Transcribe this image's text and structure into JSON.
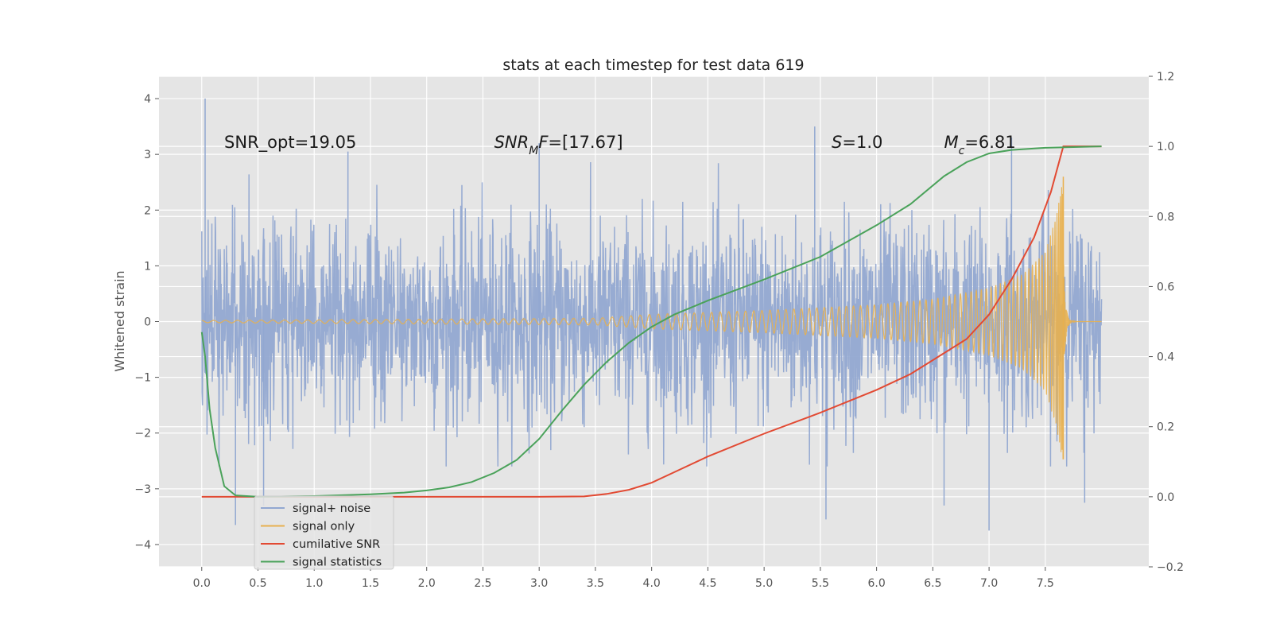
{
  "chart_data": {
    "type": "line",
    "title": "stats at each timestep for test data 619",
    "xlabel": "",
    "ylabel": "Whitened strain",
    "xlim": [
      -0.38,
      8.42
    ],
    "ylim": [
      -4.4,
      4.4
    ],
    "y2lim": [
      -0.2,
      1.2
    ],
    "x_ticks": [
      0.0,
      0.5,
      1.0,
      1.5,
      2.0,
      2.5,
      3.0,
      3.5,
      4.0,
      4.5,
      5.0,
      5.5,
      6.0,
      6.5,
      7.0,
      7.5
    ],
    "x_tick_labels": [
      "0.0",
      "0.5",
      "1.0",
      "1.5",
      "2.0",
      "2.5",
      "3.0",
      "3.5",
      "4.0",
      "4.5",
      "5.0",
      "5.5",
      "6.0",
      "6.5",
      "7.0",
      "7.5"
    ],
    "y_ticks": [
      -4,
      -3,
      -2,
      -1,
      0,
      1,
      2,
      3,
      4
    ],
    "y_tick_labels": [
      "−4",
      "−3",
      "−2",
      "−1",
      "0",
      "1",
      "2",
      "3",
      "4"
    ],
    "y2_ticks": [
      -0.2,
      0.0,
      0.2,
      0.4,
      0.6,
      0.8,
      1.0,
      1.2
    ],
    "y2_tick_labels": [
      "−0.2",
      "0.0",
      "0.2",
      "0.4",
      "0.6",
      "0.8",
      "1.0",
      "1.2"
    ],
    "grid": true,
    "legend_position": "lower-left",
    "background": "#e5e5e5",
    "annotations": [
      {
        "x": 0.2,
        "y": 3.2,
        "parts": [
          {
            "t": "SNR_opt=19.05"
          }
        ]
      },
      {
        "x": 2.6,
        "y": 3.2,
        "parts": [
          {
            "t": "SNR",
            "i": true
          },
          {
            "t": "M",
            "i": true,
            "sub": true
          },
          {
            "t": "F",
            "i": true
          },
          {
            "t": "=[17.67]"
          }
        ]
      },
      {
        "x": 5.6,
        "y": 3.2,
        "parts": [
          {
            "t": "S",
            "i": true
          },
          {
            "t": "=1.0"
          }
        ]
      },
      {
        "x": 6.6,
        "y": 3.2,
        "parts": [
          {
            "t": "M",
            "i": true
          },
          {
            "t": "c",
            "i": true,
            "sub": true
          },
          {
            "t": "=6.81"
          }
        ]
      }
    ],
    "series": [
      {
        "name": "signal+ noise",
        "color": "#92a8d1",
        "axis": "left",
        "style": "noise",
        "x_start": 0.0,
        "x_end": 8.0,
        "spread": 0.9,
        "typical_max": 2.6,
        "outlier_min": -3.8,
        "outlier_max": 4.0
      },
      {
        "name": "signal only",
        "color": "#e8b04e",
        "axis": "left",
        "style": "chirp",
        "x_start": 0.0,
        "x_end": 8.0,
        "merger_x": 7.66,
        "peak_amplitude": 2.6,
        "envelope": [
          [
            0.0,
            0.02
          ],
          [
            3.5,
            0.06
          ],
          [
            4.0,
            0.13
          ],
          [
            5.0,
            0.2
          ],
          [
            6.0,
            0.3
          ],
          [
            6.5,
            0.4
          ],
          [
            7.0,
            0.6
          ],
          [
            7.3,
            0.85
          ],
          [
            7.5,
            1.25
          ],
          [
            7.6,
            1.9
          ],
          [
            7.66,
            2.6
          ]
        ]
      },
      {
        "name": "cumilative SNR",
        "color": "#e24a33",
        "axis": "right",
        "style": "line",
        "points": [
          [
            0.0,
            0.0
          ],
          [
            1.0,
            0.0
          ],
          [
            2.0,
            0.0
          ],
          [
            3.0,
            0.0
          ],
          [
            3.4,
            0.001
          ],
          [
            3.6,
            0.008
          ],
          [
            3.8,
            0.02
          ],
          [
            4.0,
            0.04
          ],
          [
            4.2,
            0.07
          ],
          [
            4.5,
            0.115
          ],
          [
            5.0,
            0.18
          ],
          [
            5.5,
            0.24
          ],
          [
            6.0,
            0.305
          ],
          [
            6.3,
            0.35
          ],
          [
            6.5,
            0.39
          ],
          [
            6.8,
            0.45
          ],
          [
            7.0,
            0.52
          ],
          [
            7.2,
            0.62
          ],
          [
            7.4,
            0.74
          ],
          [
            7.55,
            0.87
          ],
          [
            7.66,
            1.0
          ],
          [
            8.0,
            1.0
          ]
        ]
      },
      {
        "name": "signal statistics",
        "color": "#4aa25a",
        "axis": "right",
        "style": "line",
        "points": [
          [
            0.0,
            0.47
          ],
          [
            0.03,
            0.4
          ],
          [
            0.07,
            0.25
          ],
          [
            0.12,
            0.14
          ],
          [
            0.2,
            0.03
          ],
          [
            0.3,
            0.004
          ],
          [
            0.5,
            0.0
          ],
          [
            1.0,
            0.002
          ],
          [
            1.5,
            0.007
          ],
          [
            1.8,
            0.012
          ],
          [
            2.0,
            0.018
          ],
          [
            2.2,
            0.027
          ],
          [
            2.4,
            0.042
          ],
          [
            2.6,
            0.068
          ],
          [
            2.8,
            0.105
          ],
          [
            3.0,
            0.165
          ],
          [
            3.2,
            0.245
          ],
          [
            3.4,
            0.32
          ],
          [
            3.6,
            0.385
          ],
          [
            3.8,
            0.44
          ],
          [
            4.0,
            0.485
          ],
          [
            4.2,
            0.52
          ],
          [
            4.5,
            0.56
          ],
          [
            5.0,
            0.62
          ],
          [
            5.5,
            0.685
          ],
          [
            6.0,
            0.775
          ],
          [
            6.3,
            0.835
          ],
          [
            6.6,
            0.915
          ],
          [
            6.8,
            0.955
          ],
          [
            7.0,
            0.98
          ],
          [
            7.2,
            0.99
          ],
          [
            7.5,
            0.996
          ],
          [
            8.0,
            1.0
          ]
        ]
      }
    ]
  }
}
